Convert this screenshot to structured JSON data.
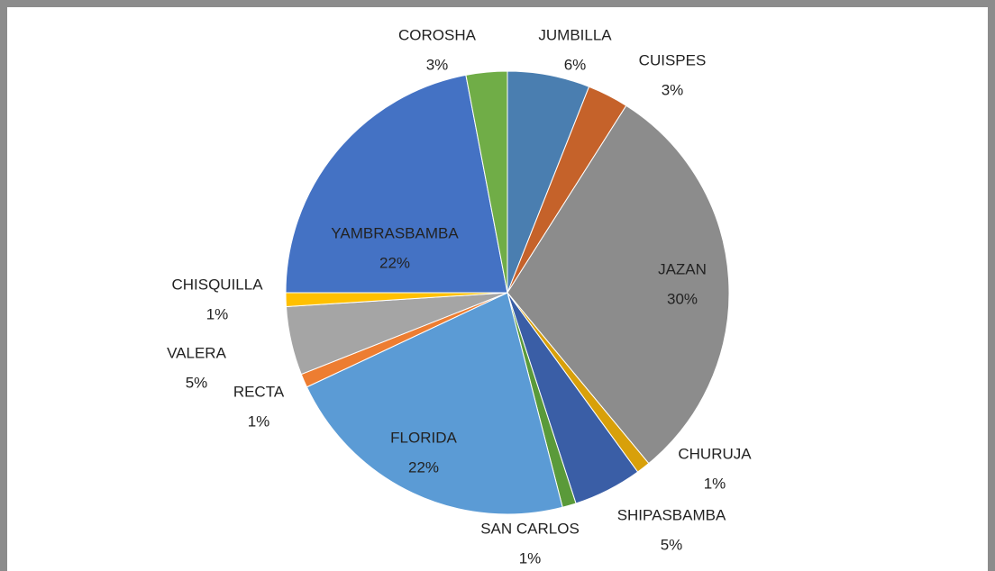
{
  "chart_data": {
    "type": "pie",
    "categories": [
      "JUMBILLA",
      "CUISPES",
      "JAZAN",
      "CHURUJA",
      "SHIPASBAMBA",
      "SAN CARLOS",
      "FLORIDA",
      "RECTA",
      "VALERA",
      "CHISQUILLA",
      "YAMBRASBAMBA",
      "COROSHA"
    ],
    "values": [
      6,
      3,
      30,
      1,
      5,
      1,
      22,
      1,
      5,
      1,
      22,
      3
    ],
    "value_labels": [
      "6%",
      "3%",
      "30%",
      "1%",
      "5%",
      "1%",
      "22%",
      "1%",
      "5%",
      "1%",
      "22%",
      "3%"
    ],
    "colors": [
      "#4a7eb0",
      "#c5622a",
      "#8c8c8c",
      "#d8a00a",
      "#3a5ea6",
      "#5a9a3a",
      "#5b9bd5",
      "#ed7d31",
      "#a5a5a5",
      "#ffc000",
      "#4472c4",
      "#70ad47"
    ]
  }
}
